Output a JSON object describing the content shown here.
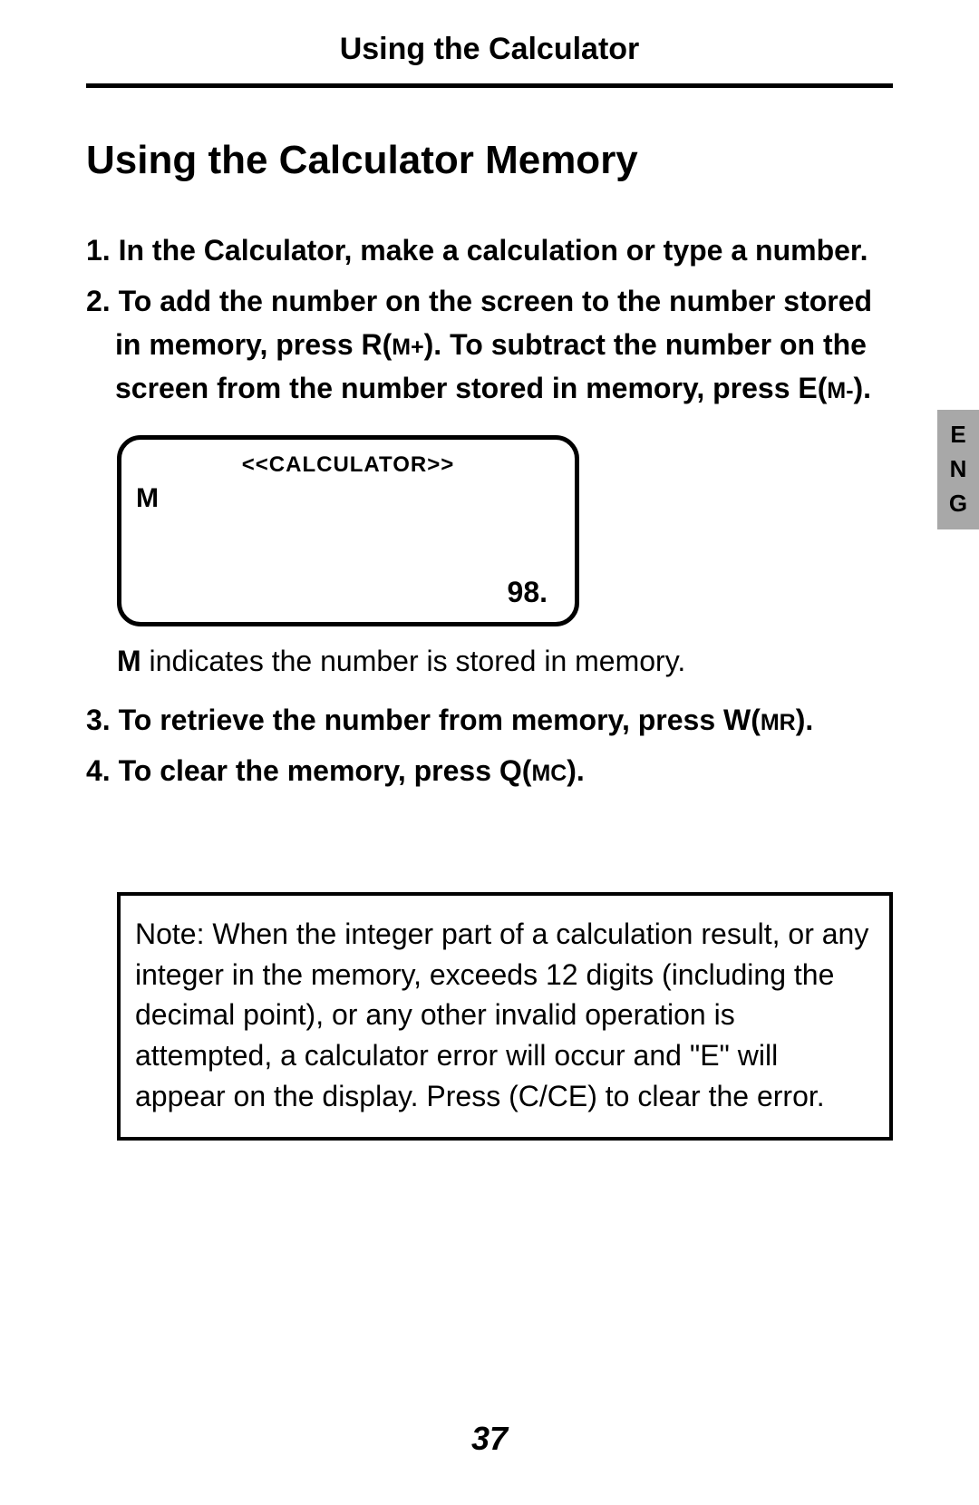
{
  "header": {
    "title": "Using the Calculator"
  },
  "section_title": "Using the Calculator Memory",
  "steps": {
    "s1": {
      "num": "1.",
      "text": "In the Calculator, make a calculation or type a number."
    },
    "s2": {
      "num": "2.",
      "part_a": "To add the number on the screen to the number stored in memory, press R(",
      "mplus": "M+",
      "part_b": "). To subtract the number on the screen from the number stored in memory, press E(",
      "mminus": "M-",
      "part_c": ")."
    },
    "s3": {
      "num": "3.",
      "part_a": "To retrieve the number from memory, press W(",
      "mr": "MR",
      "part_b": ")."
    },
    "s4": {
      "num": "4.",
      "part_a": "To clear the memory, press Q(",
      "mc": "MC",
      "part_b": ")."
    }
  },
  "calc_display": {
    "title": "<<CALCULATOR>>",
    "indicator": "M",
    "value": "98."
  },
  "caption": {
    "prefix_bold": "M",
    "rest": " indicates the number is stored in memory."
  },
  "lang_tab": {
    "l1": "E",
    "l2": "N",
    "l3": "G"
  },
  "note_box": "Note: When the integer part of a calculation result, or any integer in the memory, exceeds 12 digits (including the decimal point), or any other invalid operation is attempted, a calculator error will occur and \"E\" will appear on the display.  Press (C/CE) to clear the error.",
  "page_number": "37"
}
